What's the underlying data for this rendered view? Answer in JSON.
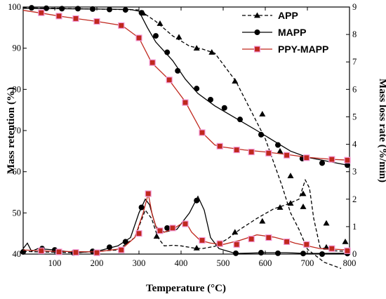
{
  "chart_data": {
    "type": "line",
    "x_label": "Temperature (°C)",
    "y_left_label": "Mass retention (%)",
    "y_right_label": "Mass loss rate (%/min)",
    "xlim": [
      25,
      800
    ],
    "ylim_left": [
      40,
      100
    ],
    "ylim_right": [
      0,
      9
    ],
    "x_ticks": [
      100,
      200,
      300,
      400,
      500,
      600,
      700,
      800
    ],
    "y_left_ticks": [
      40,
      50,
      60,
      70,
      80,
      90,
      100
    ],
    "y_right_ticks": [
      0,
      1,
      2,
      3,
      4,
      5,
      6,
      7,
      8,
      9
    ],
    "grid": false,
    "legend_position": "top-right",
    "series": [
      {
        "name": "APP",
        "color": "#000000",
        "marker": "triangle",
        "tg_style": "dashed",
        "dtg_style": "dashed",
        "tg": [
          [
            25,
            99.8
          ],
          [
            100,
            99.7
          ],
          [
            200,
            99.5
          ],
          [
            300,
            99.3
          ],
          [
            340,
            96.5
          ],
          [
            380,
            93
          ],
          [
            420,
            90.5
          ],
          [
            450,
            89.8
          ],
          [
            480,
            88.8
          ],
          [
            530,
            82
          ],
          [
            560,
            76
          ],
          [
            600,
            68
          ],
          [
            640,
            56.5
          ],
          [
            660,
            50
          ],
          [
            680,
            46
          ],
          [
            700,
            41.2
          ],
          [
            740,
            38
          ],
          [
            780,
            36.5
          ]
        ],
        "tg_markers": [
          [
            310,
            98.5
          ],
          [
            350,
            96
          ],
          [
            395,
            92.7
          ],
          [
            437,
            90
          ],
          [
            473,
            89
          ],
          [
            528,
            82
          ],
          [
            593,
            74
          ],
          [
            635,
            65
          ],
          [
            660,
            59
          ],
          [
            690,
            51.5
          ],
          [
            745,
            47.5
          ],
          [
            790,
            43
          ]
        ],
        "dtg": [
          [
            25,
            0.1
          ],
          [
            60,
            0.08
          ],
          [
            150,
            0.05
          ],
          [
            250,
            0.15
          ],
          [
            290,
            0.6
          ],
          [
            315,
            1.6
          ],
          [
            330,
            1.3
          ],
          [
            345,
            0.6
          ],
          [
            360,
            0.3
          ],
          [
            380,
            0.32
          ],
          [
            400,
            0.3
          ],
          [
            430,
            0.22
          ],
          [
            450,
            0.2
          ],
          [
            480,
            0.28
          ],
          [
            510,
            0.55
          ],
          [
            540,
            0.9
          ],
          [
            580,
            1.3
          ],
          [
            620,
            1.65
          ],
          [
            650,
            1.8
          ],
          [
            680,
            2.0
          ],
          [
            695,
            2.7
          ],
          [
            705,
            2.4
          ],
          [
            715,
            1.3
          ],
          [
            730,
            0.25
          ],
          [
            760,
            0.12
          ],
          [
            800,
            0.1
          ]
        ],
        "dtg_markers": [
          [
            342,
            0.65
          ],
          [
            437,
            0.22
          ],
          [
            528,
            0.8
          ],
          [
            593,
            1.2
          ],
          [
            635,
            1.7
          ],
          [
            660,
            1.85
          ],
          [
            690,
            2.2
          ],
          [
            745,
            0.25
          ]
        ]
      },
      {
        "name": "MAPP",
        "color": "#000000",
        "marker": "circle",
        "tg_style": "solid",
        "dtg_style": "solid",
        "tg": [
          [
            25,
            99.7
          ],
          [
            100,
            99.6
          ],
          [
            200,
            99.5
          ],
          [
            280,
            99.4
          ],
          [
            300,
            99
          ],
          [
            320,
            95
          ],
          [
            340,
            91.5
          ],
          [
            380,
            87
          ],
          [
            410,
            82.5
          ],
          [
            440,
            79
          ],
          [
            480,
            76
          ],
          [
            530,
            73
          ],
          [
            580,
            70
          ],
          [
            620,
            67.5
          ],
          [
            660,
            65
          ],
          [
            700,
            63.5
          ],
          [
            750,
            62.5
          ],
          [
            800,
            61.5
          ]
        ],
        "tg_markers": [
          [
            45,
            99.8
          ],
          [
            80,
            99.7
          ],
          [
            117,
            99.6
          ],
          [
            155,
            99.6
          ],
          [
            190,
            99.5
          ],
          [
            230,
            99.4
          ],
          [
            268,
            99.3
          ],
          [
            306,
            98.6
          ],
          [
            340,
            93
          ],
          [
            367,
            89
          ],
          [
            392,
            84.5
          ],
          [
            437,
            80.2
          ],
          [
            470,
            77.5
          ],
          [
            503,
            75.5
          ],
          [
            540,
            72.7
          ],
          [
            590,
            69
          ],
          [
            630,
            66.5
          ],
          [
            688,
            63.2
          ],
          [
            735,
            62.1
          ],
          [
            795,
            61.6
          ]
        ],
        "dtg": [
          [
            25,
            0.2
          ],
          [
            35,
            0.4
          ],
          [
            45,
            0.1
          ],
          [
            60,
            0.2
          ],
          [
            100,
            0.15
          ],
          [
            150,
            0.05
          ],
          [
            200,
            0.1
          ],
          [
            250,
            0.3
          ],
          [
            280,
            0.6
          ],
          [
            300,
            1.5
          ],
          [
            315,
            2.0
          ],
          [
            325,
            1.8
          ],
          [
            340,
            1.0
          ],
          [
            360,
            0.8
          ],
          [
            390,
            0.9
          ],
          [
            420,
            1.5
          ],
          [
            440,
            2.1
          ],
          [
            455,
            1.6
          ],
          [
            470,
            0.6
          ],
          [
            490,
            0.2
          ],
          [
            530,
            0.02
          ],
          [
            600,
            0.05
          ],
          [
            650,
            0.05
          ],
          [
            700,
            0.02
          ],
          [
            800,
            0.03
          ]
        ],
        "dtg_markers": [
          [
            25,
            0.08
          ],
          [
            70,
            0.2
          ],
          [
            100,
            0.15
          ],
          [
            145,
            0.04
          ],
          [
            190,
            0.1
          ],
          [
            230,
            0.25
          ],
          [
            268,
            0.45
          ],
          [
            306,
            1.7
          ],
          [
            367,
            0.95
          ],
          [
            437,
            1.95
          ],
          [
            530,
            0.03
          ],
          [
            590,
            0.05
          ],
          [
            630,
            0.03
          ],
          [
            690,
            0.02
          ],
          [
            735,
            0.0
          ],
          [
            795,
            0.02
          ]
        ]
      },
      {
        "name": "PPY-MAPP",
        "color": "#c0281e",
        "marker": "square",
        "tg_style": "solid",
        "dtg_style": "solid",
        "tg": [
          [
            25,
            99.2
          ],
          [
            70,
            98.5
          ],
          [
            110,
            97.8
          ],
          [
            150,
            97.2
          ],
          [
            200,
            96.5
          ],
          [
            260,
            95.5
          ],
          [
            300,
            92.5
          ],
          [
            330,
            86.5
          ],
          [
            370,
            82.5
          ],
          [
            410,
            77
          ],
          [
            450,
            69.5
          ],
          [
            480,
            66.5
          ],
          [
            500,
            66
          ],
          [
            550,
            65.3
          ],
          [
            600,
            64.8
          ],
          [
            650,
            64.2
          ],
          [
            700,
            63.5
          ],
          [
            760,
            63
          ],
          [
            800,
            62.8
          ]
        ],
        "tg_markers": [
          [
            68,
            98.6
          ],
          [
            110,
            97.8
          ],
          [
            150,
            97.2
          ],
          [
            200,
            96.5
          ],
          [
            258,
            95.5
          ],
          [
            300,
            92.5
          ],
          [
            332,
            86.5
          ],
          [
            372,
            82.3
          ],
          [
            410,
            76.8
          ],
          [
            450,
            69.5
          ],
          [
            492,
            66.2
          ],
          [
            532,
            65.3
          ],
          [
            567,
            64.8
          ],
          [
            608,
            64.5
          ],
          [
            651,
            64
          ],
          [
            698,
            63.4
          ],
          [
            758,
            63
          ],
          [
            795,
            62.8
          ]
        ],
        "dtg": [
          [
            25,
            0.15
          ],
          [
            100,
            0.1
          ],
          [
            200,
            0.08
          ],
          [
            260,
            0.2
          ],
          [
            290,
            0.6
          ],
          [
            310,
            1.5
          ],
          [
            322,
            2.2
          ],
          [
            332,
            1.4
          ],
          [
            345,
            0.8
          ],
          [
            360,
            0.8
          ],
          [
            380,
            0.9
          ],
          [
            410,
            1.2
          ],
          [
            425,
            0.8
          ],
          [
            445,
            0.5
          ],
          [
            470,
            0.4
          ],
          [
            500,
            0.35
          ],
          [
            540,
            0.5
          ],
          [
            580,
            0.7
          ],
          [
            620,
            0.62
          ],
          [
            650,
            0.5
          ],
          [
            670,
            0.4
          ],
          [
            700,
            0.3
          ],
          [
            730,
            0.2
          ],
          [
            760,
            0.18
          ],
          [
            800,
            0.15
          ]
        ],
        "dtg_markers": [
          [
            68,
            0.12
          ],
          [
            110,
            0.08
          ],
          [
            150,
            0.06
          ],
          [
            200,
            0.05
          ],
          [
            258,
            0.15
          ],
          [
            300,
            0.75
          ],
          [
            322,
            2.2
          ],
          [
            350,
            0.85
          ],
          [
            380,
            0.95
          ],
          [
            410,
            1.1
          ],
          [
            450,
            0.5
          ],
          [
            492,
            0.38
          ],
          [
            532,
            0.35
          ],
          [
            567,
            0.55
          ],
          [
            608,
            0.6
          ],
          [
            651,
            0.45
          ],
          [
            698,
            0.35
          ],
          [
            758,
            0.2
          ],
          [
            795,
            0.12
          ]
        ]
      }
    ]
  }
}
